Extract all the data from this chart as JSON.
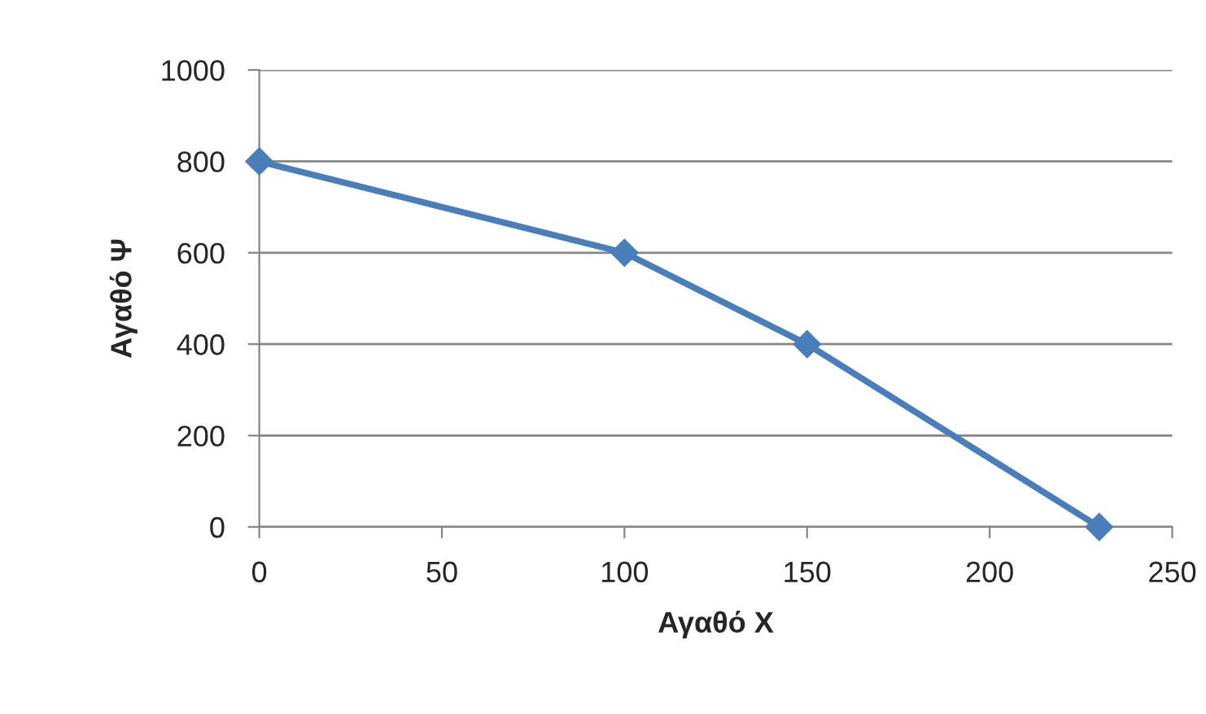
{
  "chart_data": {
    "type": "line",
    "xlabel": "Αγαθό X",
    "ylabel": "Αγαθό Ψ",
    "series": [
      {
        "color": "#4a7ebb",
        "x": [
          0,
          100,
          150,
          230
        ],
        "values": [
          800,
          600,
          400,
          0
        ]
      }
    ],
    "xlim": [
      0,
      250
    ],
    "xticks": [
      0,
      50,
      100,
      150,
      200,
      250
    ],
    "ylim": [
      0,
      1000
    ],
    "yticks": [
      0,
      200,
      400,
      600,
      800,
      1000
    ],
    "grid": "y",
    "marker": "diamond",
    "line_style": "solid",
    "legend": false
  }
}
